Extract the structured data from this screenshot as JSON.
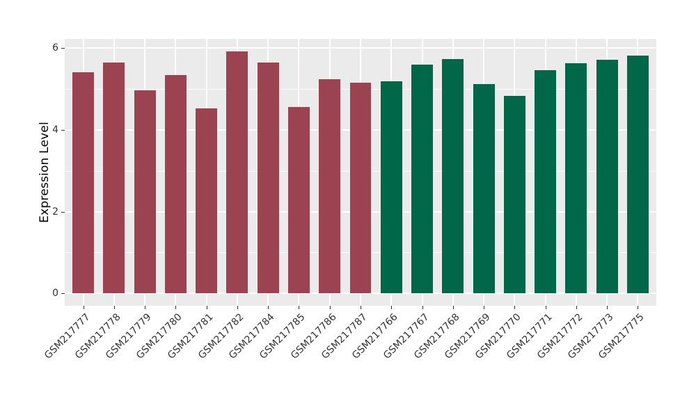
{
  "chart_data": {
    "type": "bar",
    "title": "",
    "xlabel": "",
    "ylabel": "Expression Level",
    "ylim": [
      -0.3,
      6.22
    ],
    "yticks": [
      0,
      2,
      4,
      6
    ],
    "yticks_minor": [
      1,
      3,
      5
    ],
    "grid": "white major+minor horizontal lines; white vertical major line at each category; drawn under bars",
    "legend": "none",
    "panel_background": "#ebebeb",
    "grid_color": "#ffffff",
    "axis_text_color": "#333333",
    "axis_title_color": "#000000",
    "categories": [
      "GSM217777",
      "GSM217778",
      "GSM217779",
      "GSM217780",
      "GSM217781",
      "GSM217782",
      "GSM217784",
      "GSM217785",
      "GSM217786",
      "GSM217787",
      "GSM217766",
      "GSM217767",
      "GSM217768",
      "GSM217769",
      "GSM217770",
      "GSM217771",
      "GSM217772",
      "GSM217773",
      "GSM217775"
    ],
    "values": [
      5.4,
      5.64,
      4.97,
      5.33,
      4.52,
      5.91,
      5.65,
      4.56,
      5.24,
      5.15,
      5.18,
      5.6,
      5.73,
      5.11,
      4.82,
      5.45,
      5.62,
      5.71,
      5.81
    ],
    "groups": [
      "maroon",
      "maroon",
      "maroon",
      "maroon",
      "maroon",
      "maroon",
      "maroon",
      "maroon",
      "maroon",
      "maroon",
      "green",
      "green",
      "green",
      "green",
      "green",
      "green",
      "green",
      "green",
      "green"
    ],
    "group_colors": {
      "maroon": "#9c4351",
      "green": "#006849"
    }
  }
}
